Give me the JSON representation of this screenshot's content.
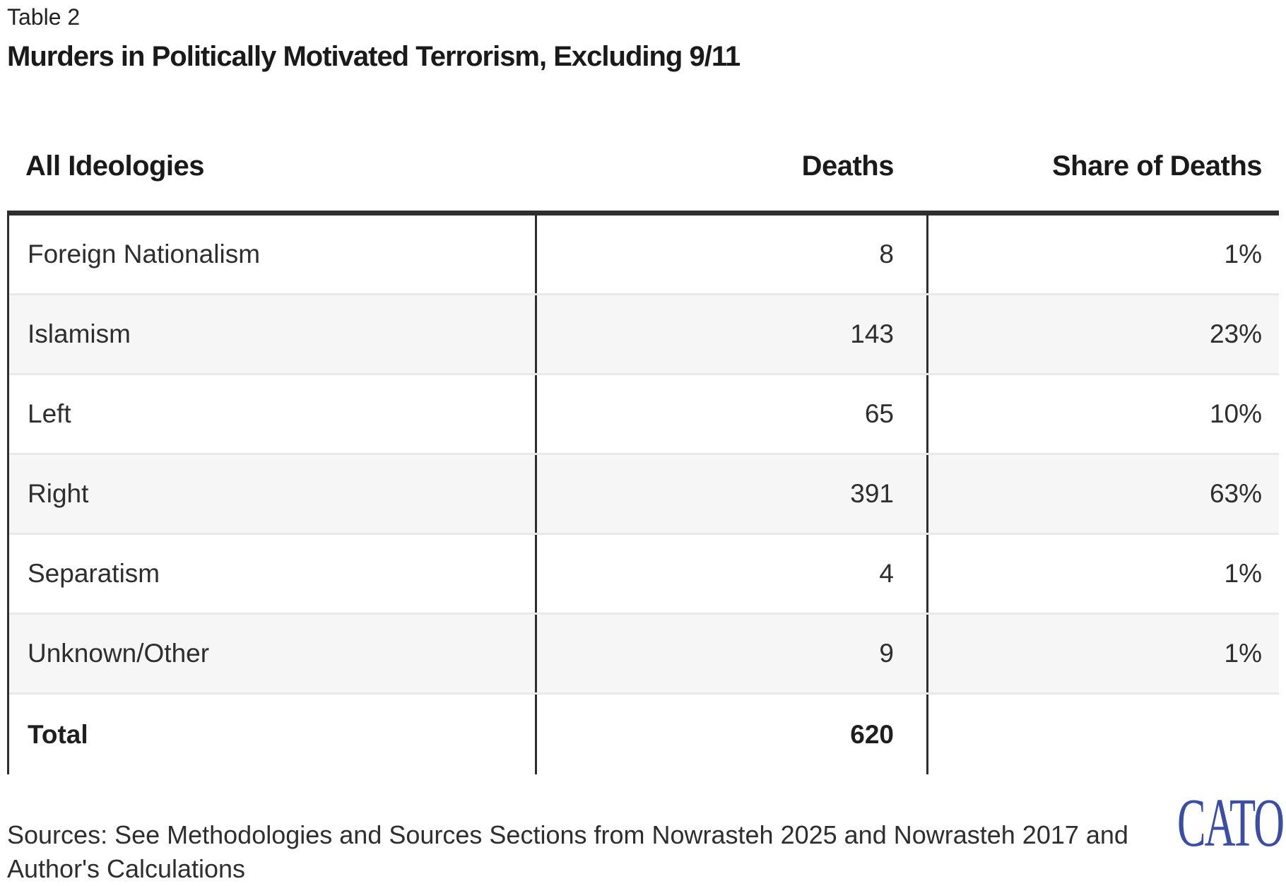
{
  "page": {
    "table_label": "Table 2",
    "title": "Murders in Politically Motivated Terrorism, Excluding 9/11"
  },
  "table": {
    "columns": [
      {
        "label": "All Ideologies",
        "align": "left"
      },
      {
        "label": "Deaths",
        "align": "right"
      },
      {
        "label": "Share of Deaths",
        "align": "right"
      }
    ],
    "rows": [
      {
        "ideology": "Foreign Nationalism",
        "deaths": "8",
        "share": "1%"
      },
      {
        "ideology": "Islamism",
        "deaths": "143",
        "share": "23%"
      },
      {
        "ideology": "Left",
        "deaths": "65",
        "share": "10%"
      },
      {
        "ideology": "Right",
        "deaths": "391",
        "share": "63%"
      },
      {
        "ideology": "Separatism",
        "deaths": "4",
        "share": "1%"
      },
      {
        "ideology": "Unknown/Other",
        "deaths": "9",
        "share": "1%"
      }
    ],
    "total_row": {
      "ideology": "Total",
      "deaths": "620",
      "share": ""
    }
  },
  "footer": {
    "sources_note": "Sources: See Methodologies and Sources Sections from Nowrasteh 2025 and Nowrasteh 2017 and\nAuthor's Calculations",
    "logo_text": "CATO"
  },
  "colors": {
    "border_dark": "#2e2e2e",
    "row_separator": "#e9e9e9",
    "row_shade": "#f6f6f6",
    "logo_blue": "#3a4ea5",
    "text": "#2e2e2e"
  }
}
